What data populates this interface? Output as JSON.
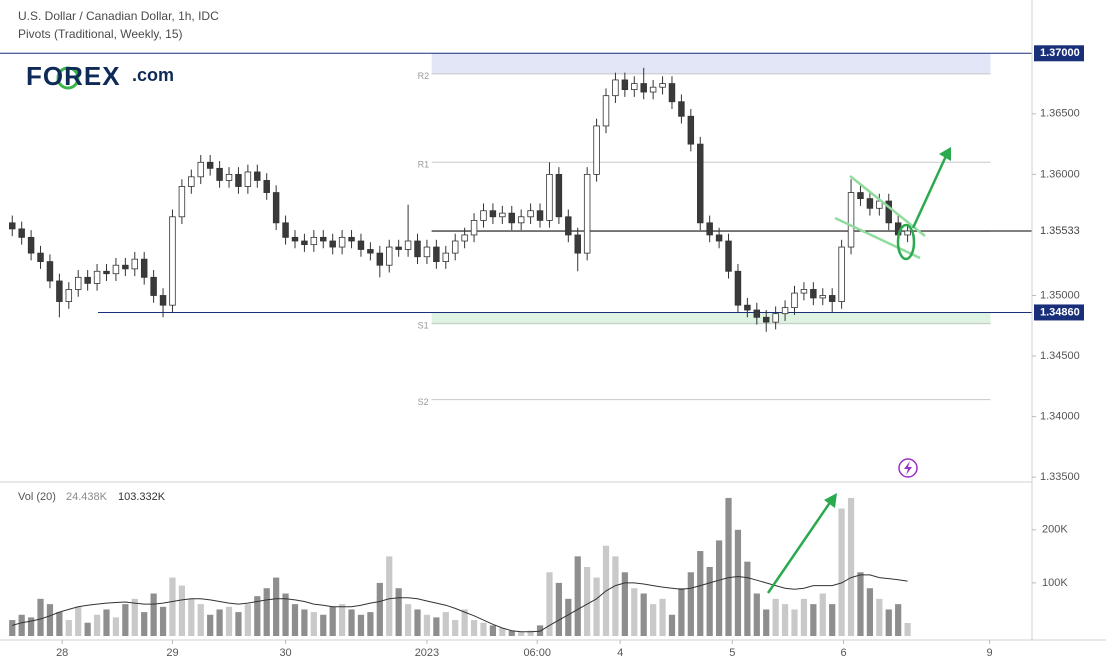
{
  "chart_data": [
    {
      "type": "candlestick",
      "title": "U.S. Dollar / Canadian Dollar, 1h, IDC",
      "subtitle": "Pivots (Traditional, Weekly, 15)",
      "logo": "FOREX",
      "logo_suffix": ".com",
      "xlim": [
        -1.3,
        108.2
      ],
      "ylim": [
        1.3346,
        1.3744
      ],
      "xticks": [
        {
          "value": 5.3,
          "label": "28"
        },
        {
          "value": 17,
          "label": "29"
        },
        {
          "value": 29,
          "label": "30"
        },
        {
          "value": 44,
          "label": "2023"
        },
        {
          "value": 55.7,
          "label": "06:00"
        },
        {
          "value": 64.5,
          "label": "4"
        },
        {
          "value": 76.4,
          "label": "5"
        },
        {
          "value": 88.2,
          "label": "6"
        },
        {
          "value": 103.7,
          "label": "9"
        }
      ],
      "yticks": [
        {
          "value": 1.365,
          "label": "1.36500"
        },
        {
          "value": 1.36,
          "label": "1.36000"
        },
        {
          "value": 1.35,
          "label": "1.35000"
        },
        {
          "value": 1.345,
          "label": "1.34500"
        },
        {
          "value": 1.34,
          "label": "1.34000"
        },
        {
          "value": 1.335,
          "label": "1.33500"
        }
      ],
      "up_color": "#ffffff",
      "down_color": "#3a3a3a",
      "wick_color": "#333333",
      "open": [
        1.356,
        1.3555,
        1.3548,
        1.3535,
        1.3528,
        1.3512,
        1.3495,
        1.3505,
        1.3515,
        1.351,
        1.352,
        1.3518,
        1.3525,
        1.3522,
        1.353,
        1.3515,
        1.35,
        1.3492,
        1.3565,
        1.359,
        1.3598,
        1.361,
        1.3605,
        1.3595,
        1.36,
        1.359,
        1.3602,
        1.3595,
        1.3585,
        1.356,
        1.3548,
        1.3545,
        1.3542,
        1.3548,
        1.3545,
        1.354,
        1.3548,
        1.3545,
        1.3538,
        1.3535,
        1.3525,
        1.354,
        1.3538,
        1.3545,
        1.3532,
        1.354,
        1.3528,
        1.3535,
        1.3545,
        1.355,
        1.3562,
        1.357,
        1.3565,
        1.3568,
        1.356,
        1.3565,
        1.357,
        1.3562,
        1.36,
        1.3565,
        1.355,
        1.3535,
        1.36,
        1.364,
        1.3665,
        1.3678,
        1.367,
        1.3675,
        1.3668,
        1.3672,
        1.3675,
        1.366,
        1.3648,
        1.3625,
        1.356,
        1.355,
        1.3545,
        1.352,
        1.3492,
        1.3488,
        1.3482,
        1.3478,
        1.3485,
        1.349,
        1.3502,
        1.3505,
        1.3498,
        1.35,
        1.3495,
        1.354,
        1.3585,
        1.358,
        1.3572,
        1.3578,
        1.356,
        1.355
      ],
      "high": [
        1.3566,
        1.3561,
        1.3554,
        1.3541,
        1.3534,
        1.3518,
        1.3511,
        1.3521,
        1.3521,
        1.3526,
        1.3526,
        1.3531,
        1.3531,
        1.3536,
        1.3536,
        1.3521,
        1.3506,
        1.3571,
        1.3596,
        1.3604,
        1.3616,
        1.3616,
        1.3611,
        1.3606,
        1.3606,
        1.3608,
        1.3608,
        1.3601,
        1.3591,
        1.3566,
        1.3554,
        1.3551,
        1.3554,
        1.3554,
        1.3551,
        1.3554,
        1.3554,
        1.3551,
        1.3544,
        1.3541,
        1.3546,
        1.3546,
        1.3575,
        1.3551,
        1.3546,
        1.3546,
        1.3541,
        1.3551,
        1.3556,
        1.3568,
        1.3576,
        1.3576,
        1.3574,
        1.3574,
        1.3571,
        1.3576,
        1.3576,
        1.361,
        1.3606,
        1.3571,
        1.3556,
        1.3606,
        1.3646,
        1.3671,
        1.3684,
        1.3684,
        1.3681,
        1.3688,
        1.3678,
        1.3681,
        1.3681,
        1.3666,
        1.3654,
        1.3631,
        1.3566,
        1.3556,
        1.3551,
        1.3526,
        1.3498,
        1.3494,
        1.3488,
        1.3491,
        1.3496,
        1.3508,
        1.3511,
        1.3511,
        1.3506,
        1.3506,
        1.3546,
        1.3596,
        1.3591,
        1.3586,
        1.3584,
        1.3584,
        1.3566,
        1.3559
      ],
      "low": [
        1.3549,
        1.3542,
        1.3529,
        1.3522,
        1.3506,
        1.3482,
        1.3489,
        1.3499,
        1.3504,
        1.3504,
        1.3512,
        1.3512,
        1.3516,
        1.3516,
        1.3509,
        1.3494,
        1.3482,
        1.3486,
        1.3559,
        1.3584,
        1.3592,
        1.3599,
        1.3589,
        1.3589,
        1.3584,
        1.3584,
        1.3589,
        1.3579,
        1.3554,
        1.3542,
        1.3539,
        1.3536,
        1.3536,
        1.3539,
        1.3534,
        1.3534,
        1.3539,
        1.3532,
        1.3529,
        1.3515,
        1.3519,
        1.3532,
        1.3532,
        1.3526,
        1.3526,
        1.3522,
        1.3522,
        1.3529,
        1.3539,
        1.3544,
        1.3556,
        1.3559,
        1.3559,
        1.3554,
        1.3554,
        1.3559,
        1.3556,
        1.3556,
        1.3559,
        1.3544,
        1.352,
        1.3529,
        1.3594,
        1.3634,
        1.3659,
        1.3664,
        1.3664,
        1.3662,
        1.3662,
        1.3666,
        1.3654,
        1.3642,
        1.3619,
        1.3554,
        1.3544,
        1.3539,
        1.3514,
        1.3486,
        1.3482,
        1.3476,
        1.347,
        1.3472,
        1.3479,
        1.3484,
        1.3496,
        1.3492,
        1.3492,
        1.3486,
        1.3489,
        1.3534,
        1.3574,
        1.3566,
        1.3566,
        1.3554,
        1.3544,
        1.3544
      ],
      "close": [
        1.3555,
        1.3548,
        1.3535,
        1.3528,
        1.3512,
        1.3495,
        1.3505,
        1.3515,
        1.351,
        1.352,
        1.3518,
        1.3525,
        1.3522,
        1.353,
        1.3515,
        1.35,
        1.3492,
        1.3565,
        1.359,
        1.3598,
        1.361,
        1.3605,
        1.3595,
        1.36,
        1.359,
        1.3602,
        1.3595,
        1.3585,
        1.356,
        1.3548,
        1.3545,
        1.3542,
        1.3548,
        1.3545,
        1.354,
        1.3548,
        1.3545,
        1.3538,
        1.3535,
        1.3525,
        1.354,
        1.3538,
        1.3545,
        1.3532,
        1.354,
        1.3528,
        1.3535,
        1.3545,
        1.355,
        1.3562,
        1.357,
        1.3565,
        1.3568,
        1.356,
        1.3565,
        1.357,
        1.3562,
        1.36,
        1.3565,
        1.355,
        1.3535,
        1.36,
        1.364,
        1.3665,
        1.3678,
        1.367,
        1.3675,
        1.3668,
        1.3672,
        1.3675,
        1.366,
        1.3648,
        1.3625,
        1.356,
        1.355,
        1.3545,
        1.352,
        1.3492,
        1.3488,
        1.3482,
        1.3478,
        1.3485,
        1.349,
        1.3502,
        1.3505,
        1.3498,
        1.35,
        1.3495,
        1.354,
        1.3585,
        1.358,
        1.3572,
        1.3578,
        1.356,
        1.355,
        1.35533
      ],
      "pivots": {
        "x_start": 44.5,
        "x_end": 103.8,
        "color": "#c8c8c8",
        "levels": [
          {
            "name": "R2",
            "value": 1.3683
          },
          {
            "name": "R1",
            "value": 1.361
          },
          {
            "value": 1.3553
          },
          {
            "name": "S1",
            "value": 1.3477
          },
          {
            "name": "S2",
            "value": 1.3414
          }
        ]
      },
      "bands": [
        {
          "from": 1.37,
          "to": 1.3683,
          "color": "#e3e6f7",
          "x_start": 44.5,
          "x_end": 103.8
        },
        {
          "from": 1.3486,
          "to": 1.3476,
          "color": "#dff3e3",
          "x_start": 44.5,
          "x_end": 103.8
        }
      ],
      "levels": [
        {
          "value": 1.37,
          "label": "1.37000",
          "color": "#1a2f7a",
          "x_start": -1.3,
          "boxed": true
        },
        {
          "value": 1.3486,
          "label": "1.34860",
          "color": "#1a2f7a",
          "x_start": 9.1,
          "boxed": true
        },
        {
          "value": 1.35533,
          "label": "1.35533",
          "color": "#000000",
          "x_start": 44.5,
          "boxed": false
        }
      ]
    },
    {
      "type": "bar",
      "title": "Vol (20)",
      "last_value_label": "24.438K",
      "last_ma_label": "103.332K",
      "ylim": [
        0,
        290000
      ],
      "yticks": [
        {
          "value": 200000,
          "label": "200K"
        },
        {
          "value": 100000,
          "label": "100K"
        }
      ],
      "up_color": "#c9c9c9",
      "down_color": "#8e8e8e",
      "ma_color": "#333333",
      "values": [
        30000,
        40000,
        35000,
        70000,
        60000,
        45000,
        30000,
        55000,
        25000,
        40000,
        50000,
        35000,
        60000,
        70000,
        45000,
        80000,
        55000,
        110000,
        95000,
        70000,
        60000,
        40000,
        50000,
        55000,
        45000,
        60000,
        75000,
        90000,
        110000,
        80000,
        60000,
        50000,
        45000,
        40000,
        55000,
        60000,
        50000,
        40000,
        45000,
        100000,
        150000,
        90000,
        60000,
        50000,
        40000,
        35000,
        45000,
        30000,
        50000,
        30000,
        25000,
        20000,
        15000,
        10000,
        8000,
        10000,
        20000,
        120000,
        100000,
        70000,
        150000,
        130000,
        110000,
        170000,
        150000,
        120000,
        90000,
        80000,
        60000,
        70000,
        40000,
        90000,
        120000,
        160000,
        130000,
        180000,
        260000,
        200000,
        140000,
        80000,
        50000,
        70000,
        60000,
        50000,
        70000,
        60000,
        80000,
        60000,
        240000,
        260000,
        120000,
        90000,
        70000,
        50000,
        60000,
        24438
      ],
      "ma_values": [
        20000,
        25000,
        28000,
        32000,
        38000,
        45000,
        50000,
        55000,
        58000,
        60000,
        62000,
        63000,
        64000,
        62000,
        60000,
        60000,
        62000,
        65000,
        68000,
        70000,
        70000,
        68000,
        65000,
        62000,
        60000,
        62000,
        65000,
        68000,
        70000,
        70000,
        68000,
        65000,
        60000,
        58000,
        55000,
        55000,
        55000,
        58000,
        62000,
        65000,
        70000,
        72000,
        72000,
        70000,
        66000,
        62000,
        58000,
        52000,
        45000,
        38000,
        30000,
        22000,
        15000,
        10000,
        8000,
        8000,
        9000,
        20000,
        30000,
        40000,
        50000,
        60000,
        70000,
        85000,
        95000,
        100000,
        100000,
        98000,
        95000,
        92000,
        90000,
        88000,
        90000,
        95000,
        100000,
        105000,
        110000,
        112000,
        110000,
        105000,
        100000,
        95000,
        90000,
        88000,
        90000,
        95000,
        95000,
        95000,
        100000,
        110000,
        115000,
        115000,
        110000,
        108000,
        106000,
        103332
      ]
    }
  ]
}
